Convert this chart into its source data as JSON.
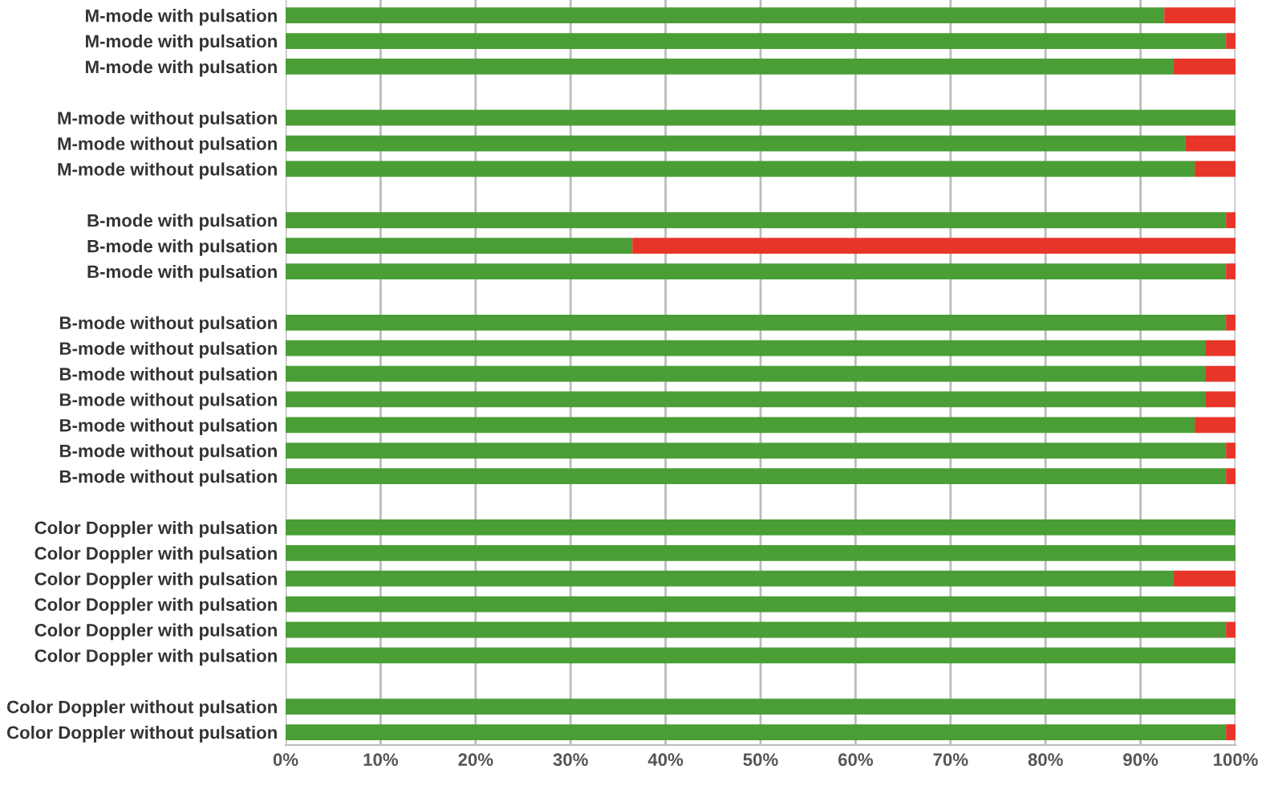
{
  "chart_data": {
    "type": "bar",
    "orientation": "horizontal",
    "stacked": true,
    "categories": [
      "M-mode with pulsation",
      "M-mode with pulsation",
      "M-mode with pulsation",
      null,
      "M-mode without pulsation",
      "M-mode without pulsation",
      "M-mode without pulsation",
      null,
      "B-mode with pulsation",
      "B-mode with pulsation",
      "B-mode with pulsation",
      null,
      "B-mode without pulsation",
      "B-mode without pulsation",
      "B-mode without pulsation",
      "B-mode without pulsation",
      "B-mode without pulsation",
      "B-mode without pulsation",
      "B-mode without pulsation",
      null,
      "Color Doppler with pulsation",
      "Color Doppler with pulsation",
      "Color Doppler with pulsation",
      "Color Doppler with pulsation",
      "Color Doppler with pulsation",
      "Color Doppler with pulsation",
      null,
      "Color Doppler without pulsation",
      "Color Doppler without pulsation"
    ],
    "series": [
      {
        "color": "#4a9e35",
        "values": [
          92.5,
          99,
          93.5,
          null,
          100,
          94.7,
          95.7,
          null,
          99,
          36.5,
          99,
          null,
          99,
          96.8,
          96.8,
          96.8,
          95.7,
          99,
          99,
          null,
          100,
          100,
          93.5,
          100,
          99,
          100,
          null,
          100,
          99
        ]
      },
      {
        "color": "#e8352a",
        "values": [
          7.5,
          1,
          6.5,
          null,
          0,
          5.3,
          4.3,
          null,
          1,
          63.5,
          1,
          null,
          1,
          3.2,
          3.2,
          3.2,
          4.3,
          1,
          1,
          null,
          0,
          0,
          6.5,
          0,
          1,
          0,
          null,
          0,
          1
        ]
      }
    ],
    "xlim": [
      0,
      100
    ],
    "xticks": [
      {
        "value": 0,
        "label": "0%"
      },
      {
        "value": 10,
        "label": "10%"
      },
      {
        "value": 20,
        "label": "20%"
      },
      {
        "value": 30,
        "label": "30%"
      },
      {
        "value": 40,
        "label": "40%"
      },
      {
        "value": 50,
        "label": "50%"
      },
      {
        "value": 60,
        "label": "60%"
      },
      {
        "value": 70,
        "label": "70%"
      },
      {
        "value": 80,
        "label": "80%"
      },
      {
        "value": 90,
        "label": "90%"
      },
      {
        "value": 100,
        "label": "100%"
      }
    ],
    "grid": "x",
    "legend": false
  }
}
